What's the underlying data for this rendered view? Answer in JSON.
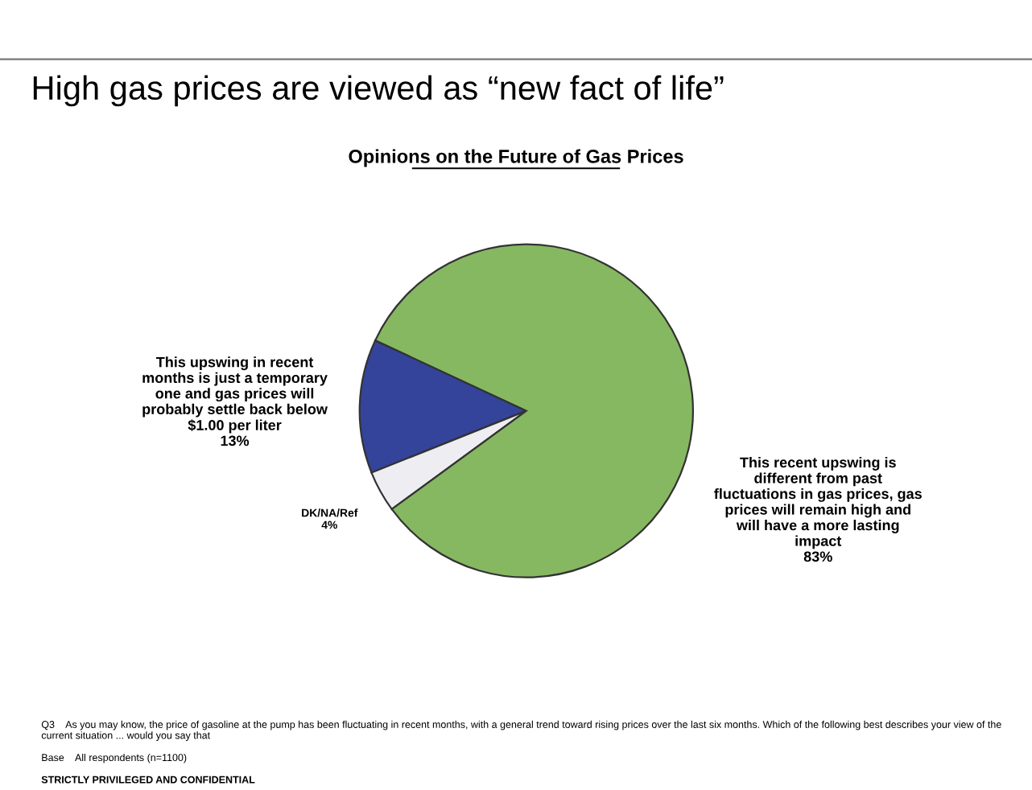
{
  "chart_data": {
    "type": "pie",
    "title": "High gas prices are viewed as “new fact of life”",
    "subtitle": "Opinions on the Future of Gas Prices",
    "categories": [
      "This upswing in recent months is just a temporary one and gas prices will probably settle back below $1.00 per liter",
      "DK/NA/Ref",
      "This recent upswing is different from past fluctuations in gas prices, gas prices will remain high and will have a more lasting impact"
    ],
    "values": [
      13,
      4,
      83
    ],
    "value_labels": [
      "13%",
      "4%",
      "83%"
    ],
    "colors": [
      "#34449a",
      "#eeeef2",
      "#86b862"
    ],
    "annotations": [
      "Q3    As you may know, the price of gasoline at the pump has been fluctuating in recent months, with a general trend toward rising prices over the last six months. Which of the following best describes your view of the current situation ... would you say that",
      "Base    All respondents (n=1100)",
      "STRICTLY PRIVILEGED AND CONFIDENTIAL"
    ]
  }
}
